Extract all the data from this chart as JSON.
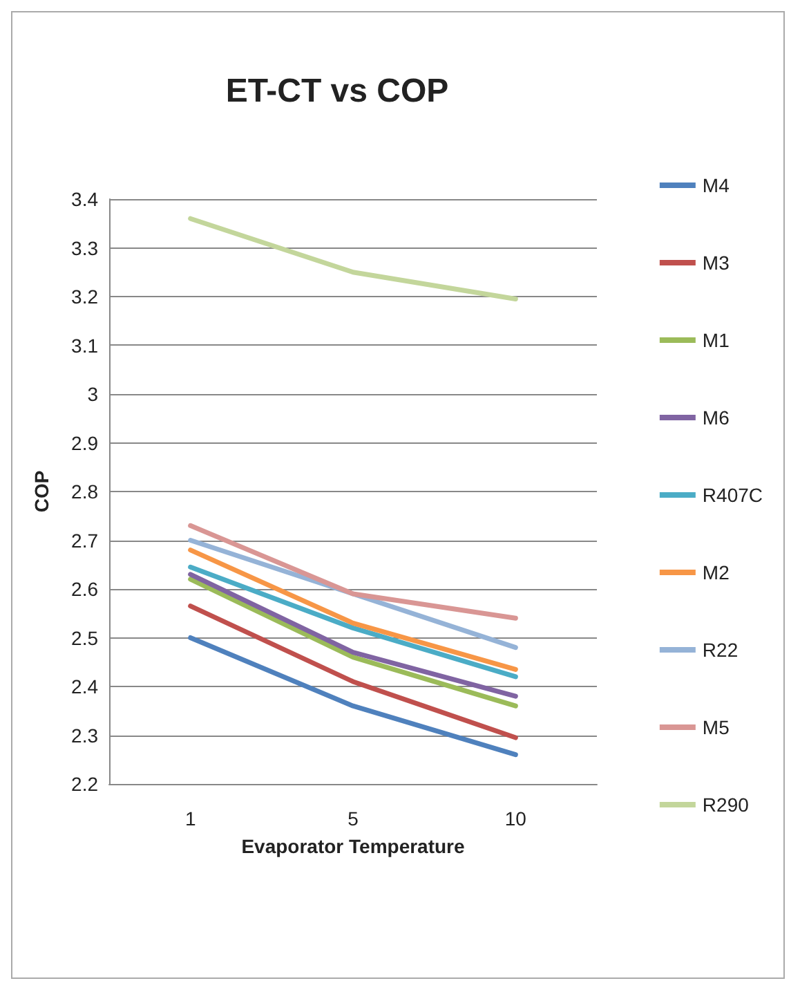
{
  "chart_data": {
    "type": "line",
    "title": "ET-CT vs COP",
    "xlabel": "Evaporator Temperature",
    "ylabel": "COP",
    "categories": [
      "1",
      "5",
      "10"
    ],
    "series": [
      {
        "name": "M4",
        "color": "#4f81bd",
        "values": [
          2.5,
          2.36,
          2.26
        ]
      },
      {
        "name": "M3",
        "color": "#c0504d",
        "values": [
          2.565,
          2.41,
          2.295
        ]
      },
      {
        "name": "M1",
        "color": "#9bbb59",
        "values": [
          2.62,
          2.46,
          2.36
        ]
      },
      {
        "name": "M6",
        "color": "#8064a2",
        "values": [
          2.63,
          2.47,
          2.38
        ]
      },
      {
        "name": "R407C",
        "color": "#4bacc6",
        "values": [
          2.645,
          2.52,
          2.42
        ]
      },
      {
        "name": "M2",
        "color": "#f79646",
        "values": [
          2.68,
          2.53,
          2.435
        ]
      },
      {
        "name": "R22",
        "color": "#95b3d7",
        "values": [
          2.7,
          2.59,
          2.48
        ]
      },
      {
        "name": "M5",
        "color": "#d99694",
        "values": [
          2.73,
          2.59,
          2.54
        ]
      },
      {
        "name": "R290",
        "color": "#c3d69b",
        "values": [
          3.36,
          3.25,
          3.195
        ]
      }
    ],
    "ylim": [
      2.2,
      3.4
    ],
    "yticks": [
      2.2,
      2.3,
      2.4,
      2.5,
      2.6,
      2.7,
      2.8,
      2.9,
      3,
      3.1,
      3.2,
      3.3,
      3.4
    ],
    "grid": "y",
    "legend": "right",
    "marker": "none",
    "line_style": "solid"
  }
}
